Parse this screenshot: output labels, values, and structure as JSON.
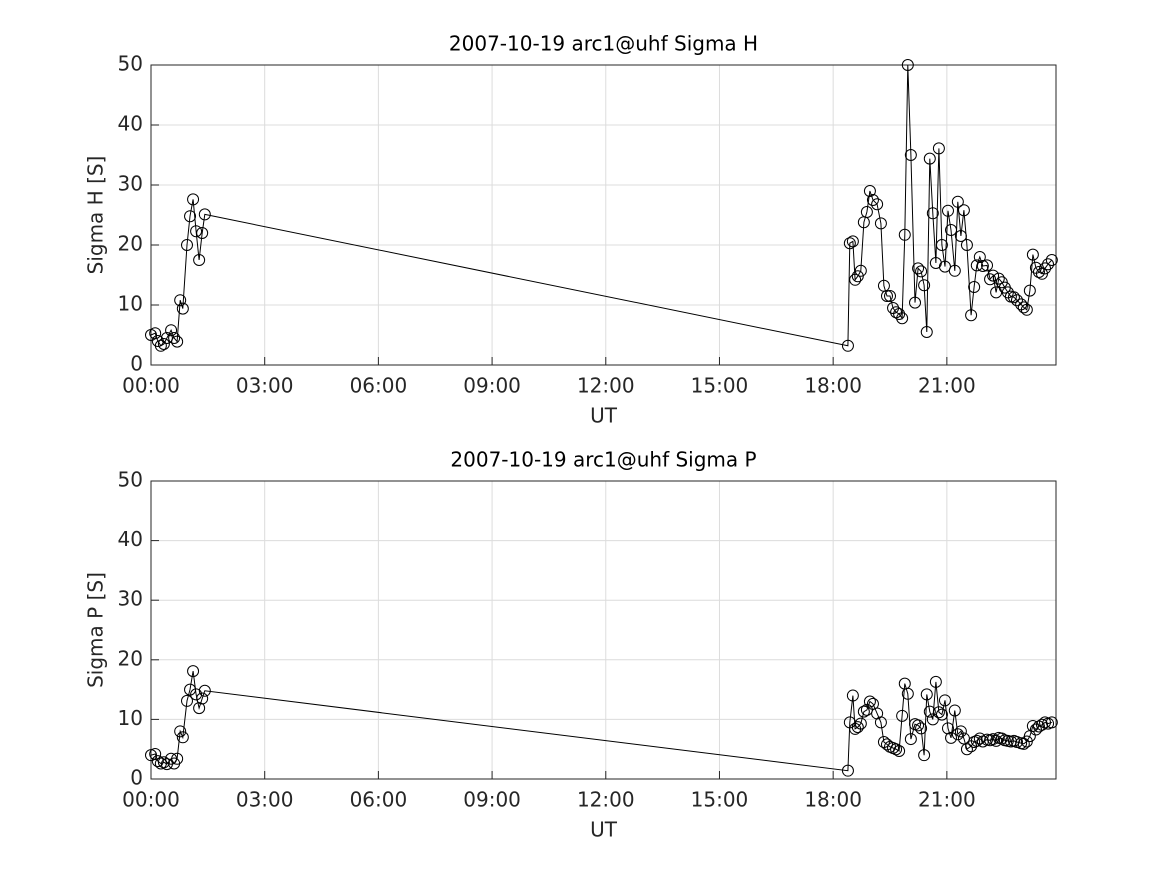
{
  "chart_data": [
    {
      "type": "line",
      "title": "2007-10-19  arc1@uhf Sigma H",
      "x_label": "UT",
      "y_label": "Sigma H [S]",
      "color": "#000000",
      "marker": "circle",
      "grid": true,
      "xlim": [
        0,
        23.88
      ],
      "ylim": [
        0,
        50
      ],
      "xticks": [
        {
          "value": 0,
          "label": "00:00"
        },
        {
          "value": 3,
          "label": "03:00"
        },
        {
          "value": 6,
          "label": "06:00"
        },
        {
          "value": 9,
          "label": "09:00"
        },
        {
          "value": 12,
          "label": "12:00"
        },
        {
          "value": 15,
          "label": "15:00"
        },
        {
          "value": 18,
          "label": "18:00"
        },
        {
          "value": 21,
          "label": "21:00"
        }
      ],
      "yticks": [
        0,
        10,
        20,
        30,
        40,
        50
      ],
      "x": [
        0,
        0.11,
        0.18,
        0.26,
        0.34,
        0.42,
        0.53,
        0.61,
        0.69,
        0.77,
        0.84,
        0.95,
        1.03,
        1.11,
        1.19,
        1.27,
        1.35,
        1.42,
        18.39,
        18.44,
        18.52,
        18.58,
        18.65,
        18.73,
        18.81,
        18.89,
        18.97,
        19.05,
        19.16,
        19.26,
        19.34,
        19.42,
        19.5,
        19.58,
        19.66,
        19.74,
        19.82,
        19.89,
        19.97,
        20.05,
        20.16,
        20.24,
        20.32,
        20.4,
        20.47,
        20.55,
        20.63,
        20.71,
        20.79,
        20.87,
        20.95,
        21.03,
        21.11,
        21.21,
        21.29,
        21.37,
        21.45,
        21.53,
        21.64,
        21.72,
        21.79,
        21.87,
        21.95,
        22.06,
        22.14,
        22.22,
        22.3,
        22.37,
        22.45,
        22.53,
        22.61,
        22.69,
        22.77,
        22.85,
        22.96,
        23.03,
        23.11,
        23.19,
        23.27,
        23.35,
        23.43,
        23.51,
        23.59,
        23.67,
        23.77
      ],
      "values": [
        5.0,
        5.3,
        4.0,
        3.2,
        3.5,
        4.5,
        5.8,
        4.5,
        3.9,
        10.8,
        9.4,
        20,
        24.8,
        27.6,
        22.3,
        17.5,
        22,
        25.1,
        3.2,
        20.3,
        20.6,
        14.2,
        14.8,
        15.7,
        23.8,
        25.5,
        29,
        27.5,
        26.8,
        23.6,
        13.2,
        11.5,
        11.5,
        9.5,
        8.8,
        8.5,
        7.8,
        21.7,
        50,
        35,
        10.4,
        16.1,
        15.6,
        13.3,
        5.5,
        34.4,
        25.3,
        17,
        36.1,
        20,
        16.4,
        25.7,
        22.5,
        15.7,
        27.2,
        21.5,
        25.8,
        20,
        8.3,
        13,
        16.6,
        18,
        16.5,
        16.6,
        14.3,
        14.9,
        12.1,
        14.4,
        13.8,
        12.9,
        12.1,
        11.4,
        11.3,
        10.8,
        10.1,
        9.6,
        9.2,
        12.4,
        18.4,
        16.2,
        15.5,
        15.2,
        16.1,
        16.8,
        17.5
      ]
    },
    {
      "type": "line",
      "title": "2007-10-19  arc1@uhf Sigma P",
      "x_label": "UT",
      "y_label": "Sigma P [S]",
      "color": "#000000",
      "marker": "circle",
      "grid": true,
      "xlim": [
        0,
        23.88
      ],
      "ylim": [
        0,
        50
      ],
      "xticks": [
        {
          "value": 0,
          "label": "00:00"
        },
        {
          "value": 3,
          "label": "03:00"
        },
        {
          "value": 6,
          "label": "06:00"
        },
        {
          "value": 9,
          "label": "09:00"
        },
        {
          "value": 12,
          "label": "12:00"
        },
        {
          "value": 15,
          "label": "15:00"
        },
        {
          "value": 18,
          "label": "18:00"
        },
        {
          "value": 21,
          "label": "21:00"
        }
      ],
      "yticks": [
        0,
        10,
        20,
        30,
        40,
        50
      ],
      "x": [
        0,
        0.11,
        0.18,
        0.26,
        0.34,
        0.42,
        0.53,
        0.61,
        0.69,
        0.77,
        0.84,
        0.95,
        1.03,
        1.11,
        1.19,
        1.27,
        1.35,
        1.42,
        18.39,
        18.44,
        18.52,
        18.58,
        18.65,
        18.73,
        18.81,
        18.89,
        18.97,
        19.05,
        19.16,
        19.26,
        19.34,
        19.42,
        19.5,
        19.58,
        19.66,
        19.74,
        19.82,
        19.89,
        19.97,
        20.05,
        20.16,
        20.24,
        20.32,
        20.4,
        20.47,
        20.55,
        20.63,
        20.71,
        20.79,
        20.87,
        20.95,
        21.03,
        21.11,
        21.21,
        21.29,
        21.37,
        21.45,
        21.53,
        21.64,
        21.72,
        21.79,
        21.87,
        21.95,
        22.06,
        22.14,
        22.22,
        22.3,
        22.37,
        22.45,
        22.53,
        22.61,
        22.69,
        22.77,
        22.85,
        22.96,
        23.03,
        23.11,
        23.19,
        23.27,
        23.35,
        23.43,
        23.51,
        23.59,
        23.67,
        23.77
      ],
      "values": [
        4.0,
        4.2,
        3.0,
        2.6,
        2.8,
        2.5,
        3.4,
        2.6,
        3.4,
        8.0,
        7.0,
        13.1,
        15,
        18.1,
        14.2,
        11.9,
        13.5,
        14.8,
        1.4,
        9.5,
        14,
        8.4,
        8.7,
        9.3,
        11.3,
        11.6,
        13,
        12.6,
        11,
        9.5,
        6.2,
        5.8,
        5.4,
        5.2,
        5,
        4.7,
        10.6,
        16,
        14.3,
        6.7,
        9.2,
        9,
        8.5,
        4,
        14.2,
        11.3,
        10,
        16.3,
        11.2,
        10.8,
        13.2,
        8.5,
        6.9,
        11.5,
        7.5,
        8,
        6.8,
        5,
        5.5,
        6.2,
        6.4,
        6.8,
        6.3,
        6.6,
        6.5,
        6.7,
        6.4,
        6.9,
        6.8,
        6.5,
        6.4,
        6.3,
        6.4,
        6.2,
        6.0,
        5.9,
        6.3,
        7.2,
        8.9,
        8.3,
        8.8,
        9.1,
        9.5,
        9.3,
        9.5
      ]
    }
  ]
}
